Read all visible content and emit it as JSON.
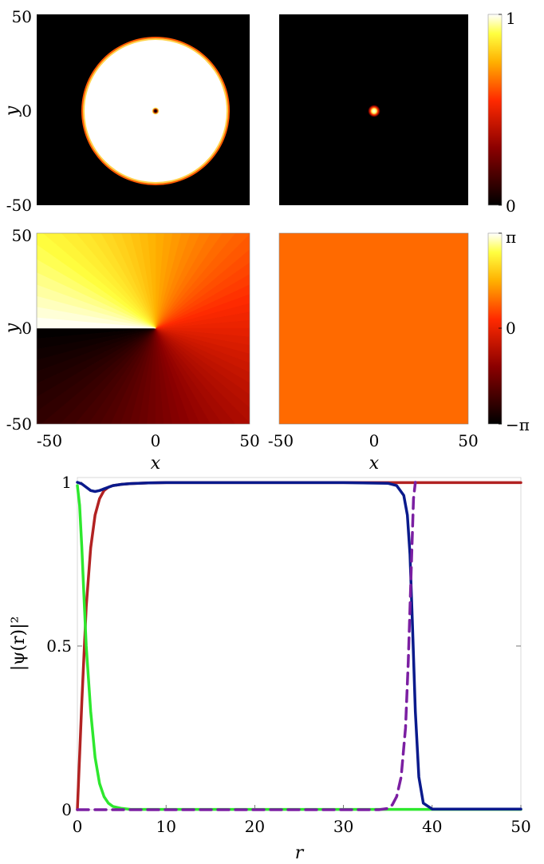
{
  "chart_data": [
    {
      "type": "heatmap",
      "panel": "density-component-1",
      "description_visible": "bright disk with tiny dark core at origin",
      "x_ticks": [
        "-50",
        "0",
        "50"
      ],
      "y_ticks": [
        "-50",
        "0",
        "50"
      ],
      "ylabel": "y",
      "xlim": [
        -50,
        50
      ],
      "ylim": [
        -50,
        50
      ],
      "disk_radius": 38,
      "core_radius": 0.8
    },
    {
      "type": "heatmap",
      "panel": "density-component-2",
      "xlim": [
        -50,
        50
      ],
      "ylim": [
        -50,
        50
      ],
      "peak_radius": 1.5
    },
    {
      "type": "heatmap",
      "panel": "phase-component-1",
      "ylabel": "y",
      "xlabel": "x",
      "x_ticks": [
        "-50",
        "0",
        "50"
      ],
      "y_ticks": [
        "-50",
        "0",
        "50"
      ],
      "xlim": [
        -50,
        50
      ],
      "ylim": [
        -50,
        50
      ],
      "winding": 1
    },
    {
      "type": "heatmap",
      "panel": "phase-component-2",
      "xlabel": "x",
      "x_ticks": [
        "-50",
        "0",
        "50"
      ],
      "xlim": [
        -50,
        50
      ],
      "ylim": [
        -50,
        50
      ],
      "uniform_phase": 0.6
    },
    {
      "type": "line",
      "xlabel": "r",
      "ylabel": "|ψ(r)|²",
      "xlim": [
        0,
        50
      ],
      "ylim": [
        0,
        1
      ],
      "x_ticks": [
        0,
        10,
        20,
        30,
        40,
        50
      ],
      "y_ticks": [
        0,
        0.5,
        1
      ],
      "y_tick_labels": [
        "0",
        "0.5",
        "1"
      ],
      "series": [
        {
          "color": "#b22222",
          "style": "solid",
          "x": [
            0,
            0.5,
            1,
            1.5,
            2,
            2.5,
            3,
            3.5,
            4,
            5,
            6,
            8,
            10,
            50
          ],
          "y": [
            0,
            0.33,
            0.62,
            0.8,
            0.9,
            0.95,
            0.975,
            0.985,
            0.99,
            0.994,
            0.996,
            0.998,
            0.999,
            0.999
          ]
        },
        {
          "color": "#2ee82e",
          "style": "solid",
          "x": [
            0,
            0.25,
            0.5,
            0.75,
            1,
            1.5,
            2,
            2.5,
            3,
            3.5,
            4,
            5,
            6,
            50
          ],
          "y": [
            0.99,
            0.93,
            0.8,
            0.65,
            0.5,
            0.3,
            0.16,
            0.08,
            0.04,
            0.02,
            0.01,
            0.004,
            0.001,
            0.001
          ]
        },
        {
          "color": "#0a1a8c",
          "style": "solid",
          "x": [
            0,
            0.5,
            1,
            1.5,
            2,
            2.5,
            3,
            4,
            5,
            6,
            8,
            10,
            20,
            30,
            35,
            36,
            36.8,
            37.2,
            37.5,
            37.8,
            38.1,
            38.5,
            39,
            40,
            50
          ],
          "y": [
            1.0,
            0.995,
            0.985,
            0.975,
            0.972,
            0.975,
            0.98,
            0.99,
            0.994,
            0.996,
            0.998,
            0.999,
            0.999,
            0.999,
            0.997,
            0.99,
            0.96,
            0.9,
            0.78,
            0.55,
            0.3,
            0.1,
            0.02,
            0.002,
            0.002
          ]
        },
        {
          "color": "#7b1fa2",
          "style": "dashed",
          "x": [
            0,
            1,
            2,
            3,
            4,
            10,
            20,
            30,
            34,
            35,
            35.5,
            36,
            36.5,
            37,
            37.3,
            37.6,
            37.9,
            38.1
          ],
          "y": [
            0,
            0,
            0,
            0,
            0,
            0,
            0,
            0,
            0,
            0.004,
            0.015,
            0.04,
            0.1,
            0.25,
            0.45,
            0.7,
            0.95,
            1.0
          ]
        }
      ]
    },
    {
      "type": "heatmap",
      "panel": "colorbar-density",
      "ticks": [
        "0",
        "1"
      ]
    },
    {
      "type": "heatmap",
      "panel": "colorbar-phase",
      "ticks": [
        "−π",
        "0",
        "π"
      ]
    }
  ],
  "labels": {
    "y": "y",
    "x": "x",
    "r": "r",
    "psi": "|ψ(r)|²"
  }
}
